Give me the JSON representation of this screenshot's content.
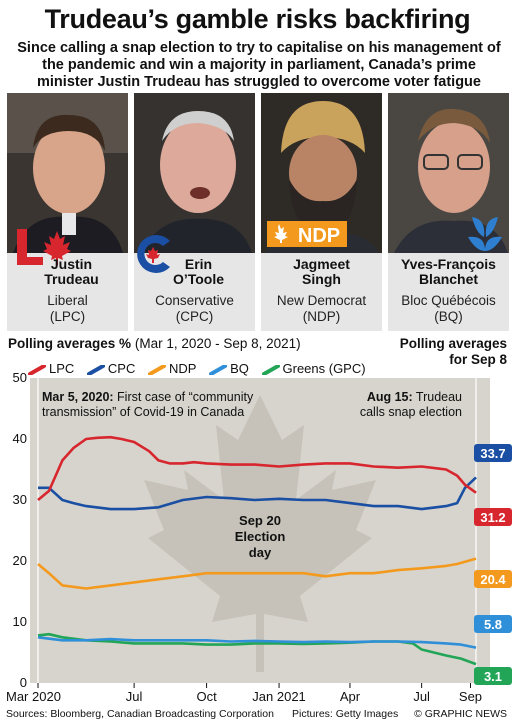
{
  "headline": "Trudeau’s gamble risks backfiring",
  "subheadline": "Since calling a snap election to try to capitalise on his management of the pandemic and win a majority in parliament, Canada’s prime minister Justin Trudeau has struggled to overcome voter fatigue",
  "leaders": [
    {
      "name": "Justin Trudeau",
      "name_line1": "Justin",
      "name_line2": "Trudeau",
      "party_line1": "Liberal",
      "party_line2": "(LPC)",
      "color": "#d7262e",
      "logo": "maple-leaf-L-logo"
    },
    {
      "name": "Erin O’Toole",
      "name_line1": "Erin",
      "name_line2": "O’Toole",
      "party_line1": "Conservative",
      "party_line2": "(CPC)",
      "color": "#1a4fa3",
      "logo": "cpc-c-logo"
    },
    {
      "name": "Jagmeet Singh",
      "name_line1": "Jagmeet",
      "name_line2": "Singh",
      "party_line1": "New Democrat",
      "party_line2": "(NDP)",
      "color": "#f39a1e",
      "logo": "ndp-logo",
      "logo_text": "NDP"
    },
    {
      "name": "Yves-François Blanchet",
      "name_line1": "Yves-François",
      "name_line2": "Blanchet",
      "party_line1": "Bloc Québécois",
      "party_line2": "(BQ)",
      "color": "#2f7fd0",
      "logo": "bq-logo"
    }
  ],
  "chart_header_bold": "Polling averages %",
  "chart_header_range": "(Mar 1, 2020 - Sep 8, 2021)",
  "right_header_line1": "Polling averages",
  "right_header_line2": "for Sep 8",
  "colors": {
    "LPC": "#d7262e",
    "CPC": "#1a4fa3",
    "NDP": "#f39a1e",
    "BQ": "#2f8fd8",
    "GPC": "#22a556",
    "panel": "#d7d4cd",
    "leaf": "#c6c2b9"
  },
  "chart_data": {
    "type": "line",
    "y_range": [
      0,
      50
    ],
    "y_ticks": [
      "0",
      "10",
      "20",
      "30",
      "40",
      "50"
    ],
    "x_range": [
      "2020-03-01",
      "2021-09-08"
    ],
    "x_tick_labels": [
      "Mar 2020",
      "Jul",
      "Oct",
      "Jan 2021",
      "Apr",
      "Jul",
      "Sep"
    ],
    "x_tick_dates": [
      "2020-03-01",
      "2020-07-01",
      "2020-10-01",
      "2021-01-01",
      "2021-04-01",
      "2021-07-01",
      "2021-09-01"
    ],
    "series": [
      {
        "name": "LPC",
        "color": "#d7262e",
        "final_label": "31.2",
        "points": [
          [
            "2020-03-01",
            30.0
          ],
          [
            "2020-03-15",
            31.5
          ],
          [
            "2020-04-01",
            36.5
          ],
          [
            "2020-04-15",
            38.5
          ],
          [
            "2020-05-01",
            40.0
          ],
          [
            "2020-05-15",
            40.2
          ],
          [
            "2020-06-01",
            40.3
          ],
          [
            "2020-06-15",
            40.0
          ],
          [
            "2020-07-01",
            39.5
          ],
          [
            "2020-07-20",
            38.0
          ],
          [
            "2020-08-01",
            36.5
          ],
          [
            "2020-08-15",
            36.0
          ],
          [
            "2020-09-01",
            36.0
          ],
          [
            "2020-09-15",
            36.2
          ],
          [
            "2020-10-01",
            36.0
          ],
          [
            "2020-11-01",
            35.8
          ],
          [
            "2020-12-01",
            35.8
          ],
          [
            "2021-01-01",
            35.5
          ],
          [
            "2021-02-01",
            35.8
          ],
          [
            "2021-03-01",
            36.0
          ],
          [
            "2021-04-01",
            36.0
          ],
          [
            "2021-05-01",
            35.5
          ],
          [
            "2021-06-01",
            35.3
          ],
          [
            "2021-07-01",
            35.5
          ],
          [
            "2021-07-20",
            35.2
          ],
          [
            "2021-08-01",
            35.0
          ],
          [
            "2021-08-15",
            34.0
          ],
          [
            "2021-08-25",
            32.5
          ],
          [
            "2021-09-08",
            31.2
          ]
        ]
      },
      {
        "name": "CPC",
        "color": "#1a4fa3",
        "final_label": "33.7",
        "points": [
          [
            "2020-03-01",
            32.0
          ],
          [
            "2020-03-15",
            32.0
          ],
          [
            "2020-04-01",
            30.0
          ],
          [
            "2020-04-15",
            29.5
          ],
          [
            "2020-05-01",
            29.0
          ],
          [
            "2020-06-01",
            28.5
          ],
          [
            "2020-07-01",
            28.5
          ],
          [
            "2020-08-01",
            28.8
          ],
          [
            "2020-09-01",
            30.0
          ],
          [
            "2020-10-01",
            30.5
          ],
          [
            "2020-11-01",
            30.3
          ],
          [
            "2020-12-01",
            30.0
          ],
          [
            "2021-01-01",
            30.2
          ],
          [
            "2021-02-01",
            30.0
          ],
          [
            "2021-03-01",
            30.0
          ],
          [
            "2021-04-01",
            29.5
          ],
          [
            "2021-05-01",
            29.0
          ],
          [
            "2021-06-01",
            29.0
          ],
          [
            "2021-07-01",
            28.5
          ],
          [
            "2021-08-01",
            29.0
          ],
          [
            "2021-08-15",
            29.5
          ],
          [
            "2021-08-25",
            32.0
          ],
          [
            "2021-09-08",
            33.7
          ]
        ]
      },
      {
        "name": "NDP",
        "color": "#f39a1e",
        "final_label": "20.4",
        "points": [
          [
            "2020-03-01",
            19.5
          ],
          [
            "2020-03-15",
            18.0
          ],
          [
            "2020-04-01",
            16.0
          ],
          [
            "2020-05-01",
            15.5
          ],
          [
            "2020-06-01",
            16.0
          ],
          [
            "2020-07-01",
            16.5
          ],
          [
            "2020-08-01",
            17.0
          ],
          [
            "2020-09-01",
            17.5
          ],
          [
            "2020-10-01",
            18.0
          ],
          [
            "2020-11-01",
            18.0
          ],
          [
            "2020-12-01",
            18.0
          ],
          [
            "2021-01-01",
            18.0
          ],
          [
            "2021-02-01",
            18.0
          ],
          [
            "2021-03-01",
            17.5
          ],
          [
            "2021-04-01",
            18.0
          ],
          [
            "2021-05-01",
            18.0
          ],
          [
            "2021-06-01",
            18.5
          ],
          [
            "2021-07-01",
            18.8
          ],
          [
            "2021-08-01",
            19.2
          ],
          [
            "2021-08-15",
            19.5
          ],
          [
            "2021-09-08",
            20.4
          ]
        ]
      },
      {
        "name": "BQ",
        "color": "#2f8fd8",
        "final_label": "5.8",
        "points": [
          [
            "2020-03-01",
            7.5
          ],
          [
            "2020-04-01",
            7.0
          ],
          [
            "2020-05-01",
            7.0
          ],
          [
            "2020-06-01",
            7.2
          ],
          [
            "2020-07-01",
            7.0
          ],
          [
            "2020-08-01",
            7.0
          ],
          [
            "2020-09-01",
            7.0
          ],
          [
            "2020-10-01",
            7.0
          ],
          [
            "2020-11-01",
            6.8
          ],
          [
            "2020-12-01",
            6.9
          ],
          [
            "2021-01-01",
            6.8
          ],
          [
            "2021-02-01",
            6.7
          ],
          [
            "2021-03-01",
            6.8
          ],
          [
            "2021-04-01",
            6.7
          ],
          [
            "2021-05-01",
            6.8
          ],
          [
            "2021-06-01",
            6.8
          ],
          [
            "2021-07-01",
            6.7
          ],
          [
            "2021-08-01",
            6.5
          ],
          [
            "2021-08-20",
            6.3
          ],
          [
            "2021-09-08",
            5.8
          ]
        ]
      },
      {
        "name": "Greens (GPC)",
        "color": "#22a556",
        "final_label": "3.1",
        "points": [
          [
            "2020-03-01",
            7.8
          ],
          [
            "2020-03-15",
            8.0
          ],
          [
            "2020-04-01",
            7.5
          ],
          [
            "2020-05-01",
            7.0
          ],
          [
            "2020-06-01",
            6.8
          ],
          [
            "2020-07-01",
            6.5
          ],
          [
            "2020-08-01",
            6.5
          ],
          [
            "2020-09-01",
            6.5
          ],
          [
            "2020-10-01",
            6.3
          ],
          [
            "2020-11-01",
            6.3
          ],
          [
            "2020-12-01",
            6.5
          ],
          [
            "2021-01-01",
            6.5
          ],
          [
            "2021-02-01",
            6.4
          ],
          [
            "2021-03-01",
            6.5
          ],
          [
            "2021-04-01",
            6.6
          ],
          [
            "2021-05-01",
            6.8
          ],
          [
            "2021-06-01",
            6.8
          ],
          [
            "2021-06-20",
            6.5
          ],
          [
            "2021-07-01",
            5.5
          ],
          [
            "2021-08-01",
            4.5
          ],
          [
            "2021-08-20",
            4.0
          ],
          [
            "2021-09-08",
            3.1
          ]
        ]
      }
    ],
    "annotations": [
      {
        "date": "2020-03-05",
        "bold": "Mar 5, 2020:",
        "line1": " First case of “community",
        "line2": "transmission” of Covid-19 in Canada"
      },
      {
        "date": "2021-08-15",
        "bold": "Aug 15:",
        "line1": " Trudeau",
        "line2": "calls snap election"
      }
    ],
    "election_label_line1": "Sep 20",
    "election_label_line2": "Election",
    "election_label_line3": "day",
    "grid": false,
    "legend": "top"
  },
  "sources": "Sources: Bloomberg, Canadian Broadcasting Corporation",
  "pictures": "Pictures: Getty Images",
  "copyright": "© GRAPHIC NEWS"
}
